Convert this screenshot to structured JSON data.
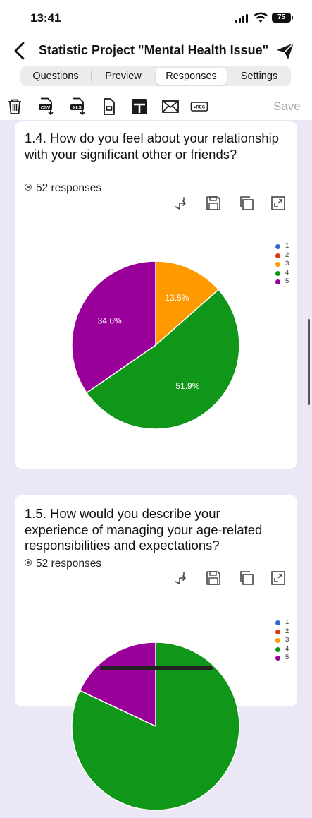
{
  "status_bar": {
    "time": "13:41",
    "battery": "75"
  },
  "header": {
    "title": "Statistic Project \"Mental Health Issue\""
  },
  "tabs": [
    {
      "label": "Questions",
      "active": false
    },
    {
      "label": "Preview",
      "active": false
    },
    {
      "label": "Responses",
      "active": true
    },
    {
      "label": "Settings",
      "active": false
    }
  ],
  "toolbar": {
    "icons": [
      "trash-icon",
      "csv-download-icon",
      "xls-download-icon",
      "document-icon",
      "table-icon",
      "mail-icon",
      "rec-icon"
    ],
    "csv_label": "CSV",
    "xls_label": "XLS",
    "rec_label": "●REC",
    "save_label": "Save"
  },
  "questions": [
    {
      "title": "1.4. How do you feel about your relationship with your significant other or friends?",
      "responses": "52 responses",
      "action_icons": [
        "swap-icon",
        "save-icon",
        "copy-icon",
        "expand-icon"
      ],
      "chart_data": {
        "type": "pie",
        "legend": [
          "1",
          "2",
          "3",
          "4",
          "5"
        ],
        "colors": [
          "#3366cc",
          "#dc3912",
          "#ff9900",
          "#109618",
          "#990099"
        ],
        "values": [
          0,
          0,
          13.5,
          51.9,
          34.6
        ],
        "labels": [
          "",
          "",
          "13.5%",
          "51.9%",
          "34.6%"
        ],
        "legend_position": "right"
      }
    },
    {
      "title": "1.5. How  would you describe your experience of managing your age-related responsibilities and expectations?",
      "responses": "52 responses",
      "action_icons": [
        "swap-icon",
        "save-icon",
        "copy-icon",
        "expand-icon"
      ],
      "chart_data": {
        "type": "pie",
        "legend": [
          "1",
          "2",
          "3",
          "4",
          "5"
        ],
        "colors": [
          "#3366cc",
          "#dc3912",
          "#ff9900",
          "#109618",
          "#990099"
        ],
        "values": [
          0,
          0,
          0,
          82,
          18
        ],
        "labels": [
          "",
          "",
          "",
          "",
          ""
        ],
        "legend_position": "right"
      }
    }
  ]
}
